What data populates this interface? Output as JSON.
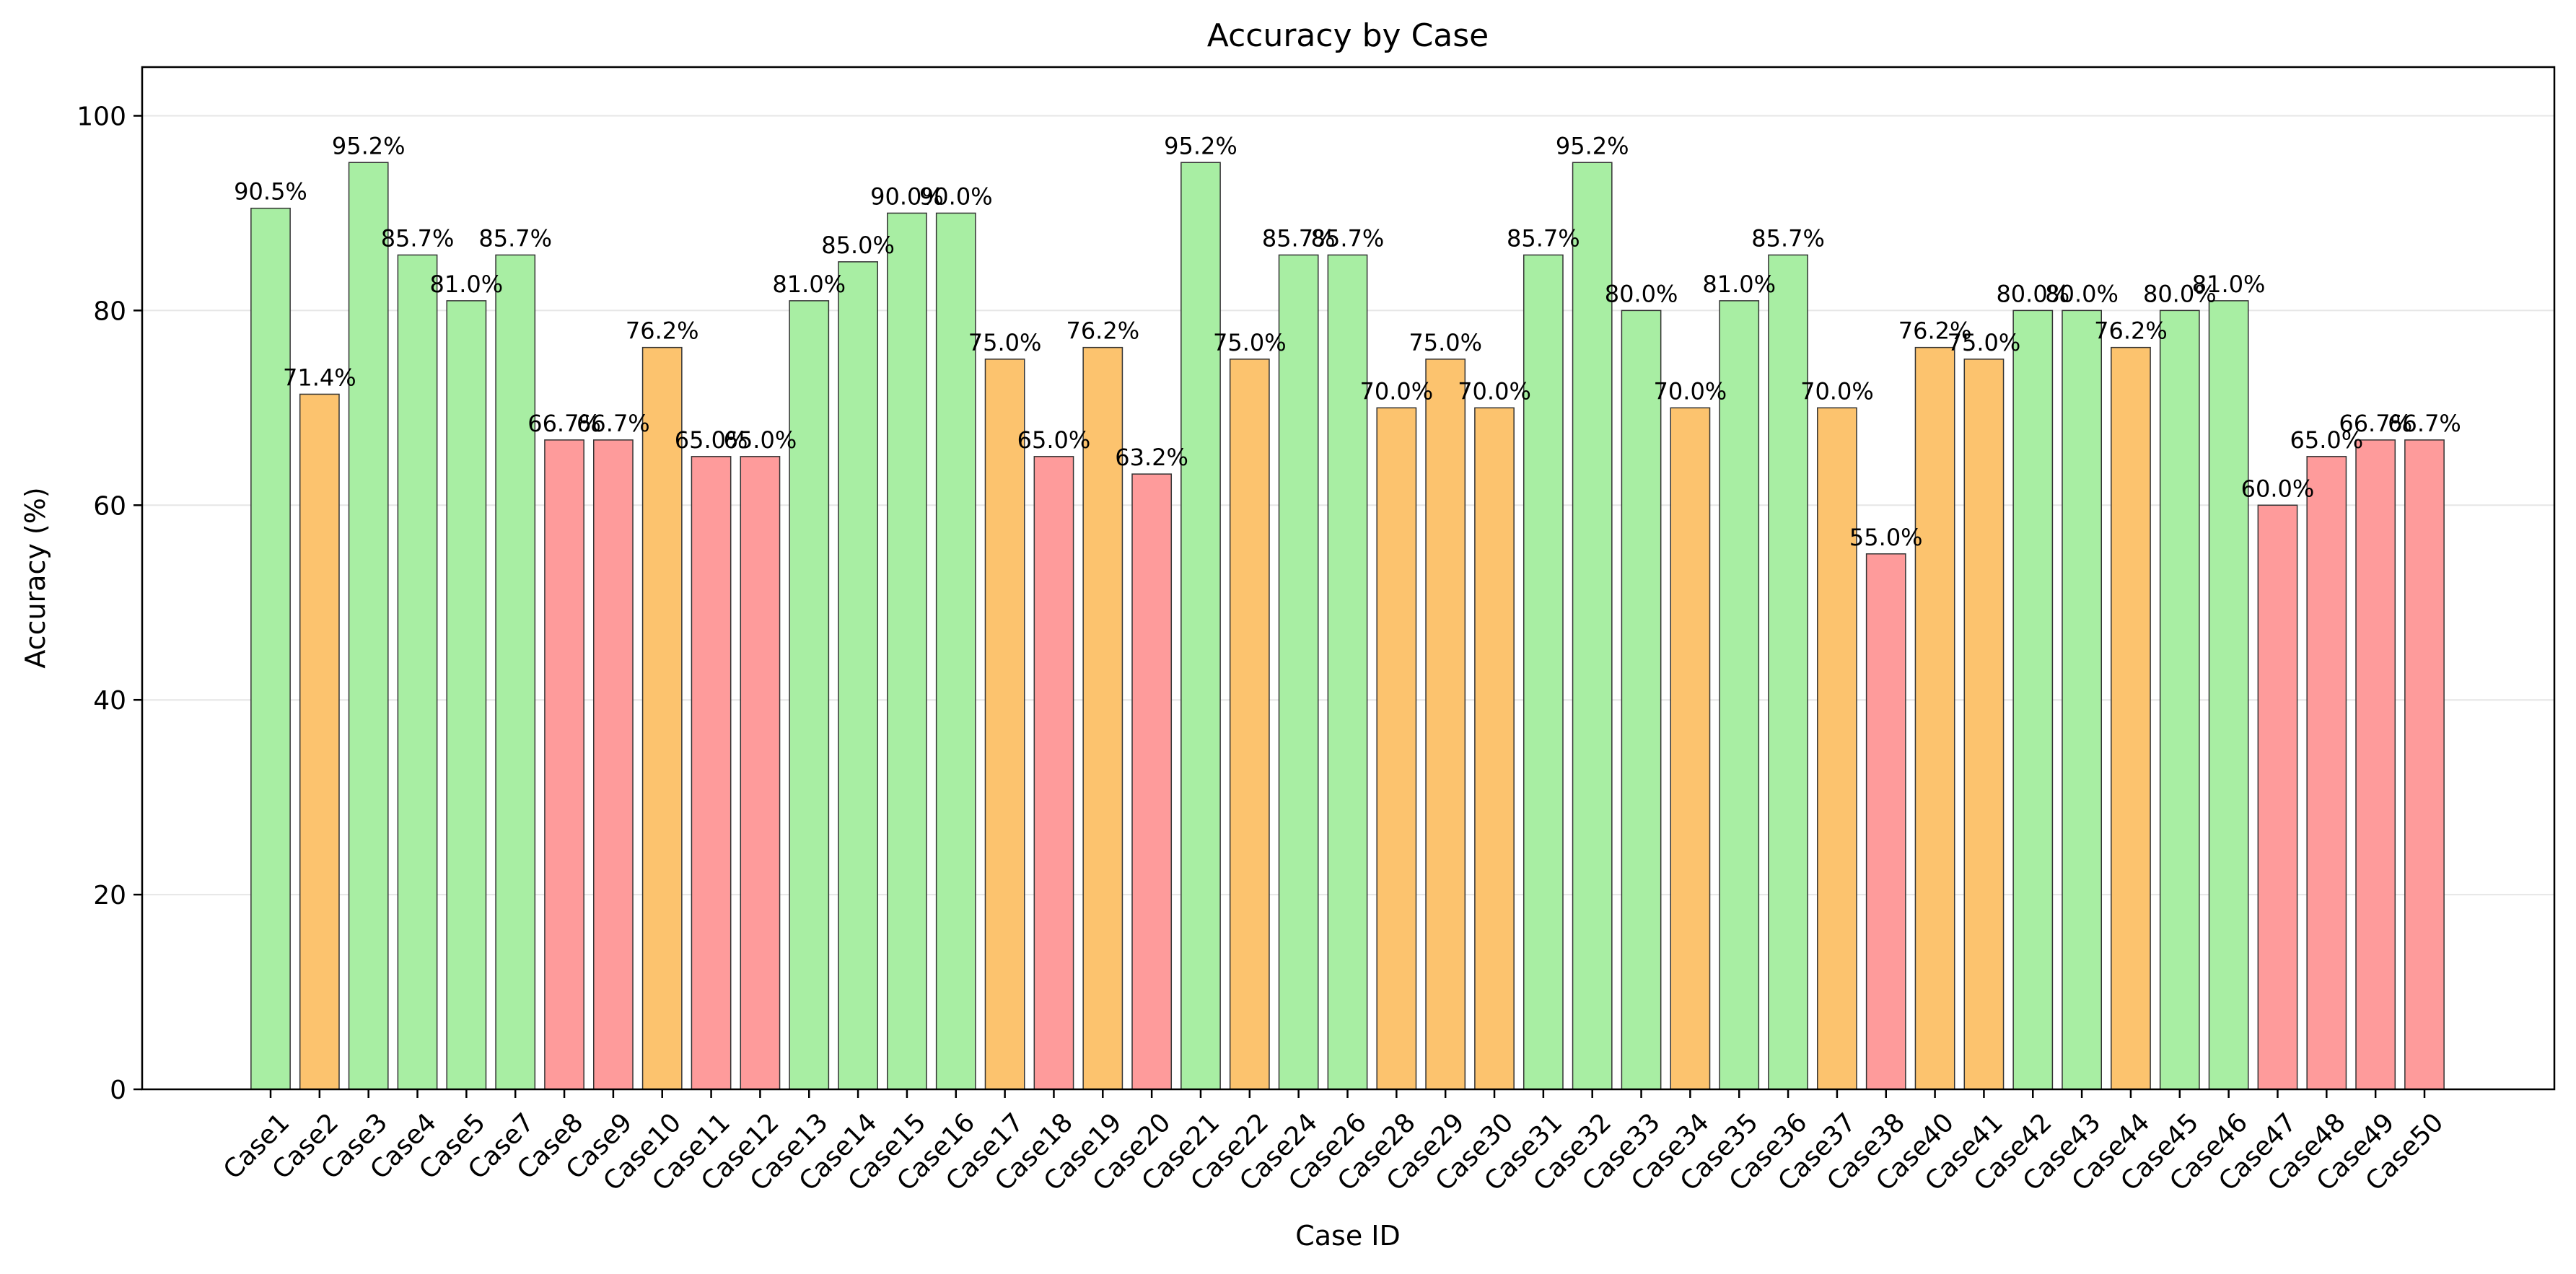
{
  "chart_data": {
    "type": "bar",
    "title": "Accuracy by Case",
    "xlabel": "Case ID",
    "ylabel": "Accuracy (%)",
    "ylim": [
      0,
      105
    ],
    "yticks": [
      0,
      20,
      40,
      60,
      80,
      100
    ],
    "grid": "horizontal",
    "categories": [
      "Case1",
      "Case2",
      "Case3",
      "Case4",
      "Case5",
      "Case7",
      "Case8",
      "Case9",
      "Case10",
      "Case11",
      "Case12",
      "Case13",
      "Case14",
      "Case15",
      "Case16",
      "Case17",
      "Case18",
      "Case19",
      "Case20",
      "Case21",
      "Case22",
      "Case24",
      "Case26",
      "Case28",
      "Case29",
      "Case30",
      "Case31",
      "Case32",
      "Case33",
      "Case34",
      "Case35",
      "Case36",
      "Case37",
      "Case38",
      "Case40",
      "Case41",
      "Case42",
      "Case43",
      "Case44",
      "Case45",
      "Case46",
      "Case47",
      "Case48",
      "Case49",
      "Case50"
    ],
    "values": [
      90.5,
      71.4,
      95.2,
      85.7,
      81.0,
      85.7,
      66.7,
      66.7,
      76.2,
      65.0,
      65.0,
      81.0,
      85.0,
      90.0,
      90.0,
      75.0,
      65.0,
      76.2,
      63.2,
      95.2,
      75.0,
      85.7,
      85.7,
      70.0,
      75.0,
      70.0,
      85.7,
      95.2,
      80.0,
      70.0,
      81.0,
      85.7,
      70.0,
      55.0,
      76.2,
      75.0,
      80.0,
      80.0,
      76.2,
      80.0,
      81.0,
      60.0,
      65.0,
      66.7,
      66.7
    ],
    "value_labels": [
      "90.5%",
      "71.4%",
      "95.2%",
      "85.7%",
      "81.0%",
      "85.7%",
      "66.7%",
      "66.7%",
      "76.2%",
      "65.0%",
      "65.0%",
      "81.0%",
      "85.0%",
      "90.0%",
      "90.0%",
      "75.0%",
      "65.0%",
      "76.2%",
      "63.2%",
      "95.2%",
      "75.0%",
      "85.7%",
      "85.7%",
      "70.0%",
      "75.0%",
      "70.0%",
      "85.7%",
      "95.2%",
      "80.0%",
      "70.0%",
      "81.0%",
      "85.7%",
      "70.0%",
      "55.0%",
      "76.2%",
      "75.0%",
      "80.0%",
      "80.0%",
      "76.2%",
      "80.0%",
      "81.0%",
      "60.0%",
      "65.0%",
      "66.7%",
      "66.7%"
    ],
    "colors": {
      "high": "#a8eea3",
      "medium": "#fcc36e",
      "low": "#fe9b9b",
      "edge": "#333333"
    }
  }
}
